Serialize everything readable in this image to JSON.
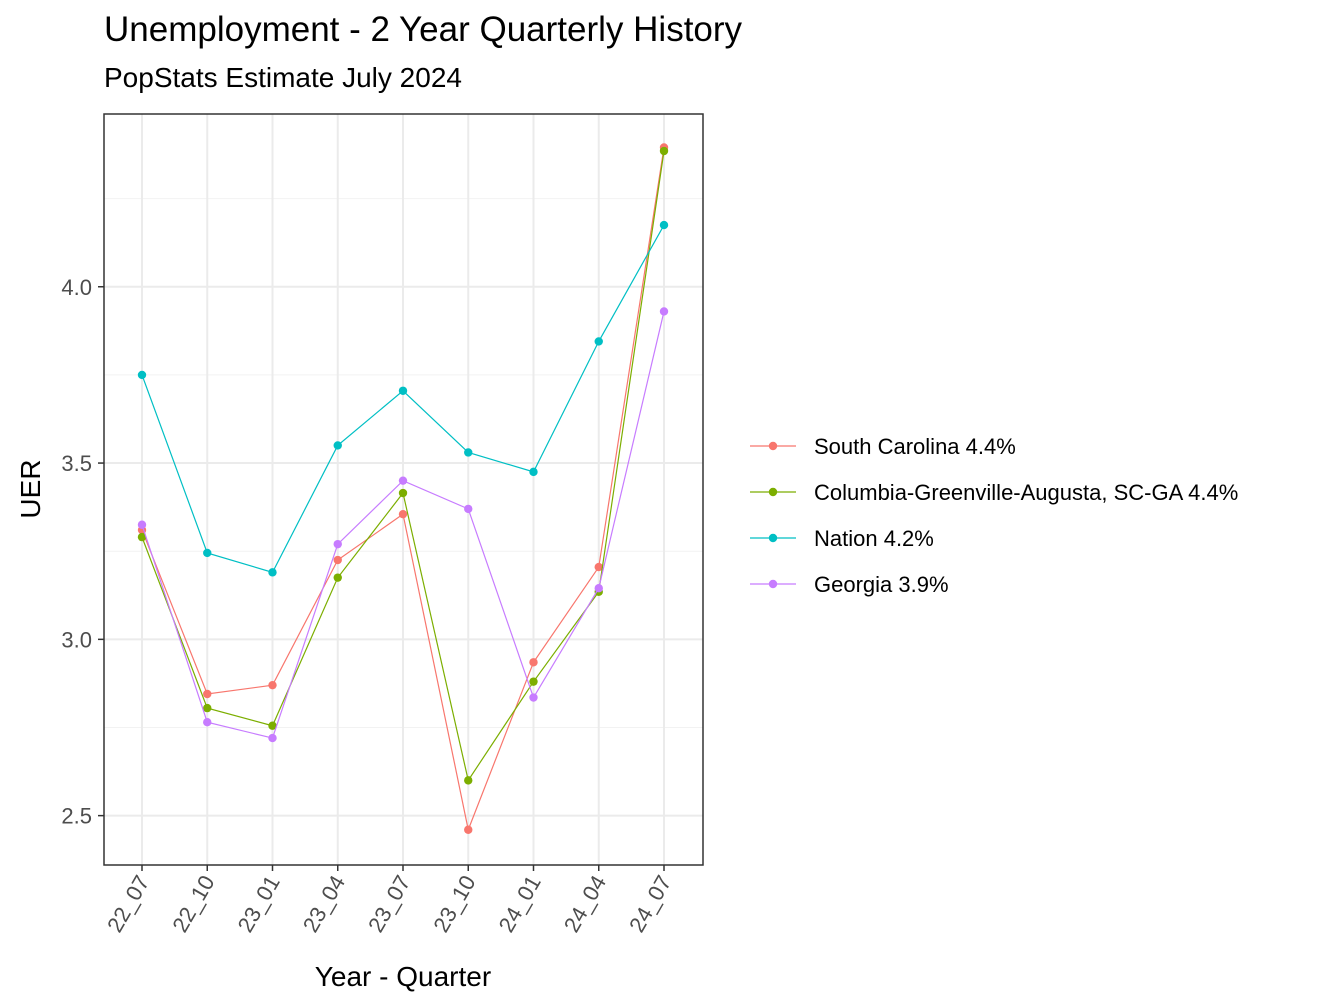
{
  "chart_data": {
    "type": "line",
    "title": "Unemployment - 2 Year Quarterly History",
    "subtitle": "PopStats Estimate July 2024",
    "xlabel": "Year - Quarter",
    "ylabel": "UER",
    "categories": [
      "22_07",
      "22_10",
      "23_01",
      "23_04",
      "23_07",
      "23_10",
      "24_01",
      "24_04",
      "24_07"
    ],
    "ylim": [
      2.36,
      4.49
    ],
    "yticks": [
      2.5,
      3.0,
      3.5,
      4.0
    ],
    "ytick_labels": [
      "2.5",
      "3.0",
      "3.5",
      "4.0"
    ],
    "grid": true,
    "legend_position": "right",
    "series": [
      {
        "name": "South Carolina 4.4%",
        "color": "#F8766D",
        "values": [
          3.31,
          2.845,
          2.87,
          3.225,
          3.355,
          2.46,
          2.935,
          3.205,
          4.395
        ]
      },
      {
        "name": "Columbia-Greenville-Augusta, SC-GA 4.4%",
        "color": "#7CAE00",
        "values": [
          3.29,
          2.805,
          2.755,
          3.175,
          3.415,
          2.6,
          2.88,
          3.135,
          4.385
        ]
      },
      {
        "name": "Nation 4.2%",
        "color": "#00BFC4",
        "values": [
          3.75,
          3.245,
          3.19,
          3.55,
          3.705,
          3.53,
          3.475,
          3.845,
          4.175
        ]
      },
      {
        "name": "Georgia 3.9%",
        "color": "#C77CFF",
        "values": [
          3.325,
          2.765,
          2.72,
          3.27,
          3.45,
          3.37,
          2.835,
          3.145,
          3.93
        ]
      }
    ]
  }
}
